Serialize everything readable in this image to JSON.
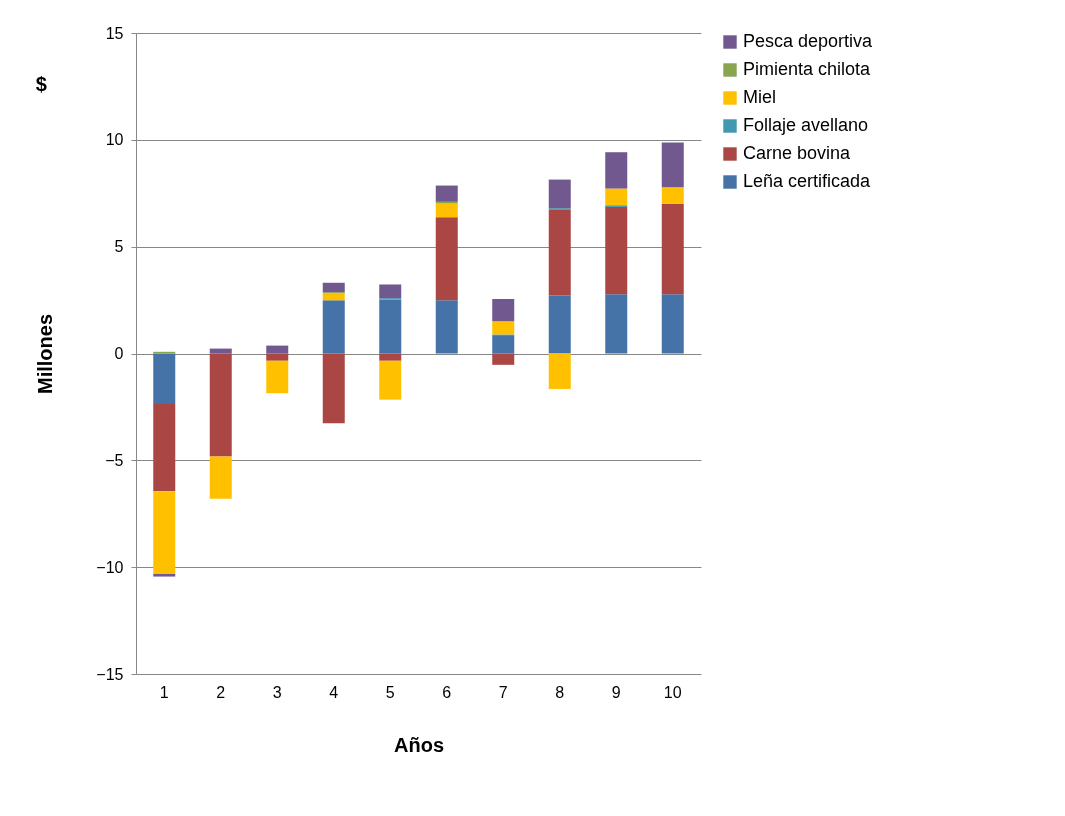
{
  "chart_data": {
    "type": "bar",
    "title": "$",
    "xlabel": "Años",
    "ylabel": "Millones",
    "categories": [
      "1",
      "2",
      "3",
      "4",
      "5",
      "6",
      "7",
      "8",
      "9",
      "10"
    ],
    "stacked": true,
    "series": [
      {
        "name": "Leña certificada",
        "color": "#4572a7",
        "values": [
          -2.36,
          null,
          null,
          2.49,
          2.53,
          2.49,
          0.86,
          2.71,
          2.77,
          2.77
        ]
      },
      {
        "name": "Carne bovina",
        "color": "#aa4643",
        "values": [
          -4.09,
          -4.82,
          -0.34,
          -3.27,
          -0.34,
          3.89,
          -0.53,
          4.01,
          4.09,
          4.23
        ]
      },
      {
        "name": "Follaje avellano",
        "color": "#4198af",
        "values": [
          null,
          null,
          null,
          null,
          0.06,
          null,
          0.03,
          0.08,
          0.08,
          null
        ]
      },
      {
        "name": "Miel",
        "color": "#ffc000",
        "values": [
          -3.87,
          -1.98,
          -1.52,
          0.33,
          -1.82,
          0.64,
          0.62,
          -1.66,
          0.78,
          0.78
        ]
      },
      {
        "name": "Pimienta chilota",
        "color": "#89a54e",
        "values": [
          0.08,
          null,
          null,
          0.05,
          null,
          0.08,
          null,
          null,
          null,
          null
        ]
      },
      {
        "name": "Pesca deportiva",
        "color": "#71588f",
        "values": [
          -0.12,
          0.23,
          0.37,
          0.44,
          0.64,
          0.76,
          1.04,
          1.34,
          1.7,
          2.1
        ]
      }
    ],
    "ylim": [
      -15,
      15
    ],
    "yticks": [
      -15,
      -10,
      -5,
      0,
      5,
      10,
      15
    ],
    "grid": "y",
    "legend": "right"
  }
}
